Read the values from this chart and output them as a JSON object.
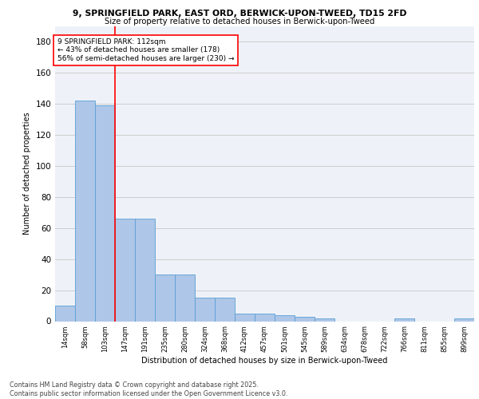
{
  "title1": "9, SPRINGFIELD PARK, EAST ORD, BERWICK-UPON-TWEED, TD15 2FD",
  "title2": "Size of property relative to detached houses in Berwick-upon-Tweed",
  "xlabel": "Distribution of detached houses by size in Berwick-upon-Tweed",
  "ylabel": "Number of detached properties",
  "categories": [
    "14sqm",
    "58sqm",
    "103sqm",
    "147sqm",
    "191sqm",
    "235sqm",
    "280sqm",
    "324sqm",
    "368sqm",
    "412sqm",
    "457sqm",
    "501sqm",
    "545sqm",
    "589sqm",
    "634sqm",
    "678sqm",
    "722sqm",
    "766sqm",
    "811sqm",
    "855sqm",
    "899sqm"
  ],
  "values": [
    10,
    142,
    139,
    66,
    66,
    30,
    30,
    15,
    15,
    5,
    5,
    4,
    3,
    2,
    0,
    0,
    0,
    2,
    0,
    0,
    2
  ],
  "bar_color": "#aec6e8",
  "bar_edge_color": "#5a9fd4",
  "vline_x": 2.5,
  "vline_color": "red",
  "annotation_text": "9 SPRINGFIELD PARK: 112sqm\n← 43% of detached houses are smaller (178)\n56% of semi-detached houses are larger (230) →",
  "annotation_box_color": "white",
  "annotation_box_edge": "red",
  "ylim": [
    0,
    190
  ],
  "yticks": [
    0,
    20,
    40,
    60,
    80,
    100,
    120,
    140,
    160,
    180
  ],
  "grid_color": "#cccccc",
  "bg_color": "#eef2f8",
  "footer": "Contains HM Land Registry data © Crown copyright and database right 2025.\nContains public sector information licensed under the Open Government Licence v3.0."
}
